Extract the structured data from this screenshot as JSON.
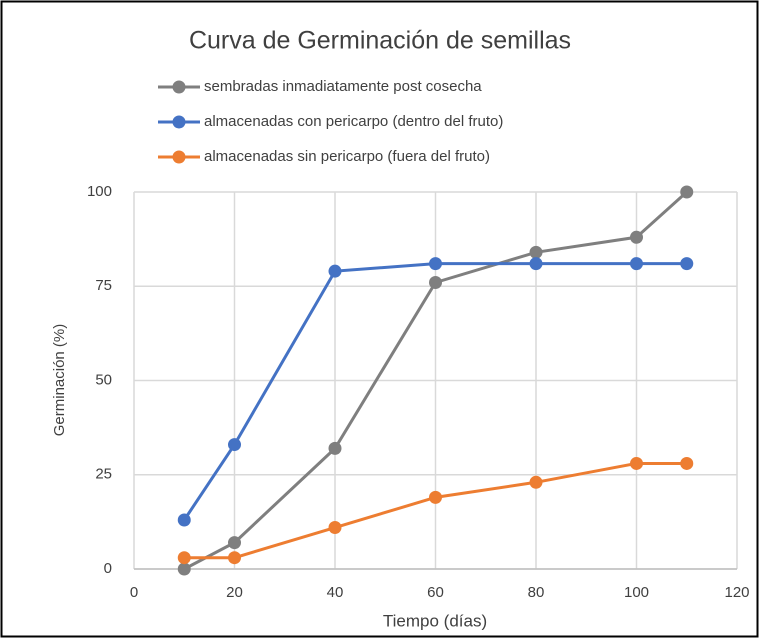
{
  "chart_data": {
    "type": "line",
    "title": "Curva de Germinación de semillas",
    "x_label": "Tiempo (días)",
    "y_label": "Germinación (%)",
    "x": [
      10,
      20,
      40,
      60,
      80,
      100,
      110
    ],
    "series": [
      {
        "name": "sembradas inmadiatamente post cosecha",
        "color": "#7f7f7f",
        "values": [
          0,
          7,
          32,
          76,
          84,
          88,
          100
        ]
      },
      {
        "name": "almacenadas con pericarpo (dentro del fruto)",
        "color": "#4472c4",
        "values": [
          13,
          33,
          79,
          81,
          81,
          81,
          81
        ]
      },
      {
        "name": "almacenadas sin pericarpo (fuera del fruto)",
        "color": "#ed7d31",
        "values": [
          3,
          3,
          11,
          19,
          23,
          28,
          28
        ]
      }
    ],
    "xlim": [
      0,
      120
    ],
    "xticks": [
      0,
      20,
      40,
      60,
      80,
      100,
      120
    ],
    "ylim": [
      0,
      100
    ],
    "yticks": [
      0,
      25,
      50,
      75,
      100
    ],
    "grid": true,
    "legend": "top"
  }
}
